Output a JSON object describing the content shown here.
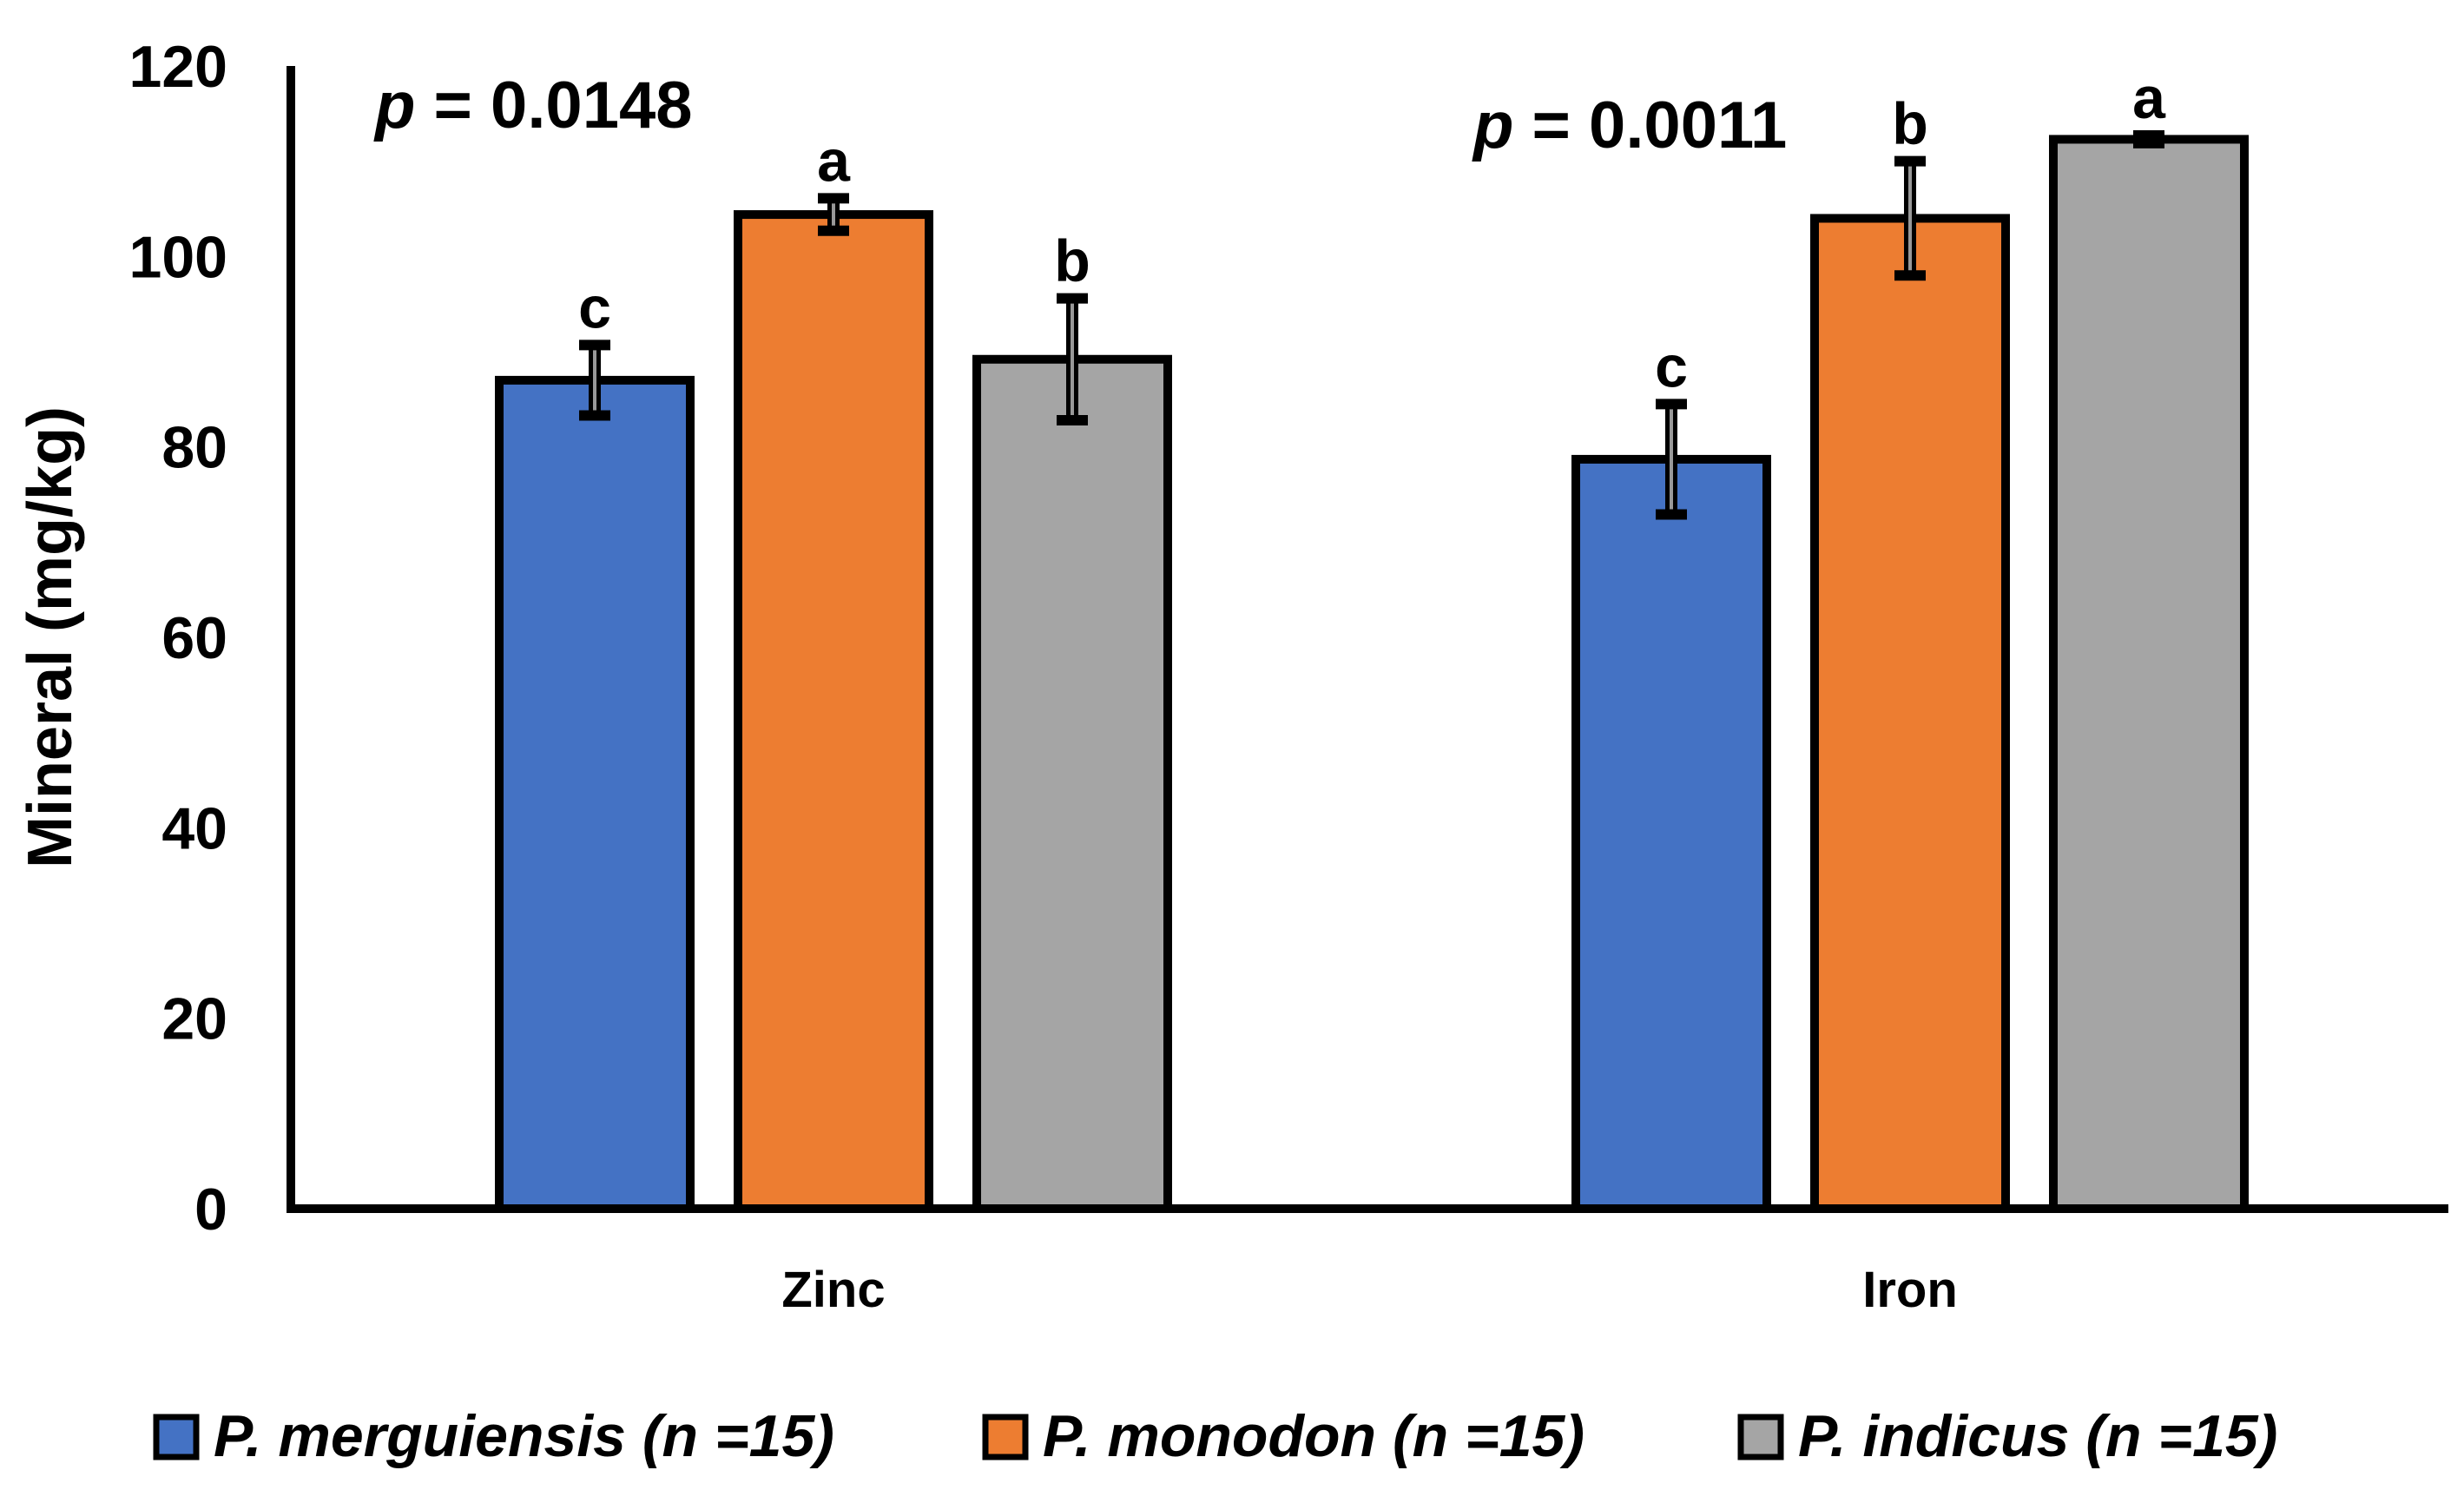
{
  "chart_data": {
    "type": "bar",
    "title": "",
    "xlabel": "",
    "ylabel": "Mineral (mg/kg)",
    "ylim": [
      0,
      120
    ],
    "yticks": [
      0,
      20,
      40,
      60,
      80,
      100,
      120
    ],
    "grid": false,
    "legend_position": "bottom",
    "categories": [
      "Zinc",
      "Iron"
    ],
    "p_values": [
      "p = 0.0148",
      "p = 0.0011"
    ],
    "series": [
      {
        "name": "P. merguiensis (n =15)",
        "color": "#4472C4",
        "values": [
          87,
          78.7
        ],
        "errors": [
          3.7,
          5.8
        ],
        "letters": [
          "c",
          "c"
        ]
      },
      {
        "name": "P. monodon (n =15)",
        "color": "#ED7D31",
        "values": [
          104.4,
          104
        ],
        "errors": [
          1.7,
          6
        ],
        "letters": [
          "a",
          "b"
        ]
      },
      {
        "name": "P. indicus (n =15)",
        "color": "#A5A5A5",
        "values": [
          89.2,
          112.3
        ],
        "errors": [
          6.4,
          0.4
        ],
        "letters": [
          "b",
          "a"
        ]
      }
    ]
  }
}
